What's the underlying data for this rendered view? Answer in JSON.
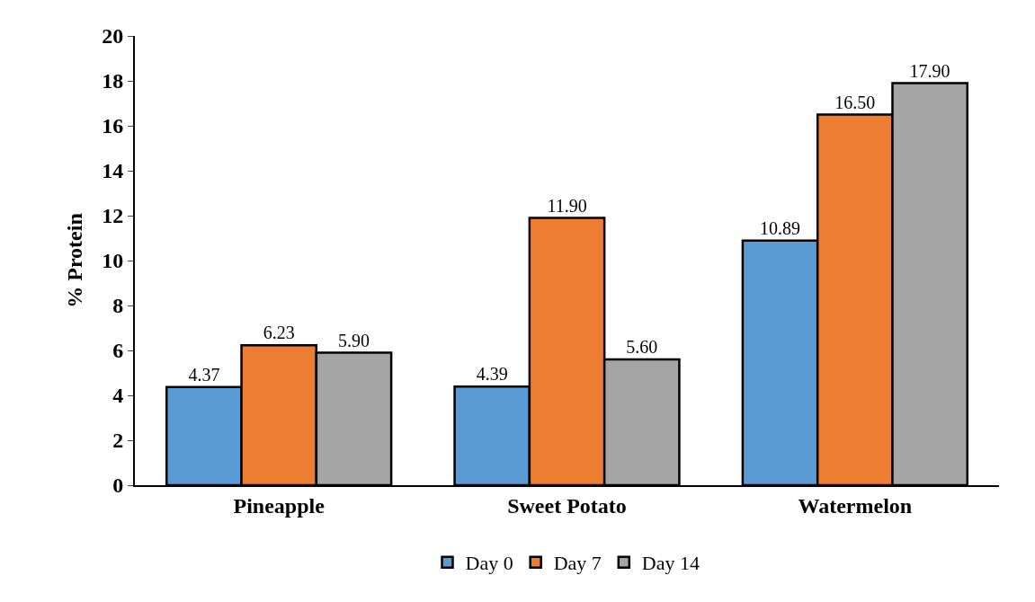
{
  "chart_data": {
    "type": "bar",
    "ylabel": "% Protein",
    "categories": [
      "Pineapple",
      "Sweet Potato",
      "Watermelon"
    ],
    "series": [
      {
        "name": "Day 0",
        "color": "#5b9bd5",
        "values": [
          4.37,
          4.39,
          10.89
        ],
        "value_labels": [
          "4.37",
          "4.39",
          "10.89"
        ]
      },
      {
        "name": "Day 7",
        "color": "#ed7d31",
        "values": [
          6.23,
          11.9,
          16.5
        ],
        "value_labels": [
          "6.23",
          "11.90",
          "16.50"
        ]
      },
      {
        "name": "Day 14",
        "color": "#a5a5a5",
        "values": [
          5.9,
          5.6,
          17.9
        ],
        "value_labels": [
          "5.90",
          "5.60",
          "17.90"
        ]
      }
    ],
    "ylim": [
      0,
      20
    ],
    "yticks": [
      0,
      2,
      4,
      6,
      8,
      10,
      12,
      14,
      16,
      18,
      20
    ],
    "grid": false,
    "legend": "bottom"
  }
}
